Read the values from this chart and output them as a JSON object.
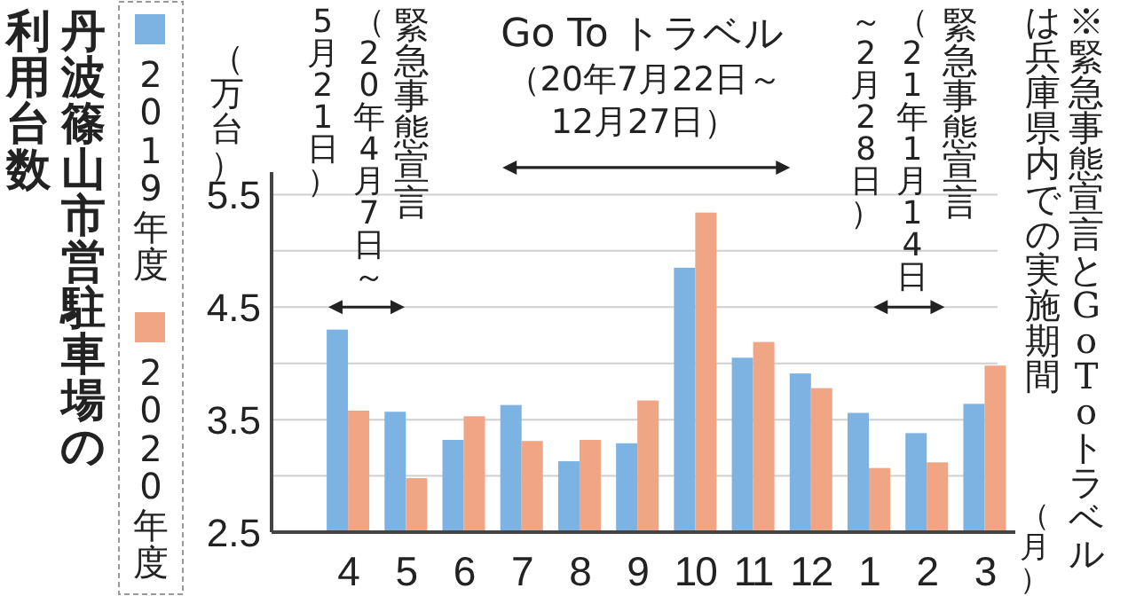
{
  "chart_data": {
    "type": "bar",
    "title": "丹波篠山市営駐車場の利用台数",
    "ylabel": "（万台）",
    "xlabel": "（月）",
    "categories": [
      "4",
      "5",
      "6",
      "7",
      "8",
      "9",
      "10",
      "11",
      "12",
      "1",
      "2",
      "3"
    ],
    "series": [
      {
        "name": "2019年度",
        "color": "#7cb3e3",
        "values": [
          4.3,
          3.57,
          3.32,
          3.63,
          3.13,
          3.29,
          4.85,
          4.05,
          3.91,
          3.56,
          3.38,
          3.64
        ]
      },
      {
        "name": "2020年度",
        "color": "#f0a585",
        "values": [
          3.58,
          2.98,
          3.53,
          3.31,
          3.32,
          3.67,
          5.34,
          4.19,
          3.78,
          3.07,
          3.12,
          3.98
        ]
      }
    ],
    "ylim": [
      2.5,
      5.7
    ],
    "yticks": [
      2.5,
      {
        "value": 3,
        "label": null
      },
      3.5,
      {
        "value": 4,
        "label": null
      },
      4.5,
      {
        "value": 5,
        "label": null
      },
      5.5
    ],
    "grid": "y",
    "legend": "left",
    "annotations": [
      "緊急事態宣言",
      "（20年4月7日～5月21日）",
      "Go To トラベル",
      "（20年7月22日～12月27日）",
      "緊急事態宣言",
      "（21年1月14日～2月28日）",
      "※緊急事態宣言とGoToトラベルは兵庫県内での実施期間"
    ]
  }
}
